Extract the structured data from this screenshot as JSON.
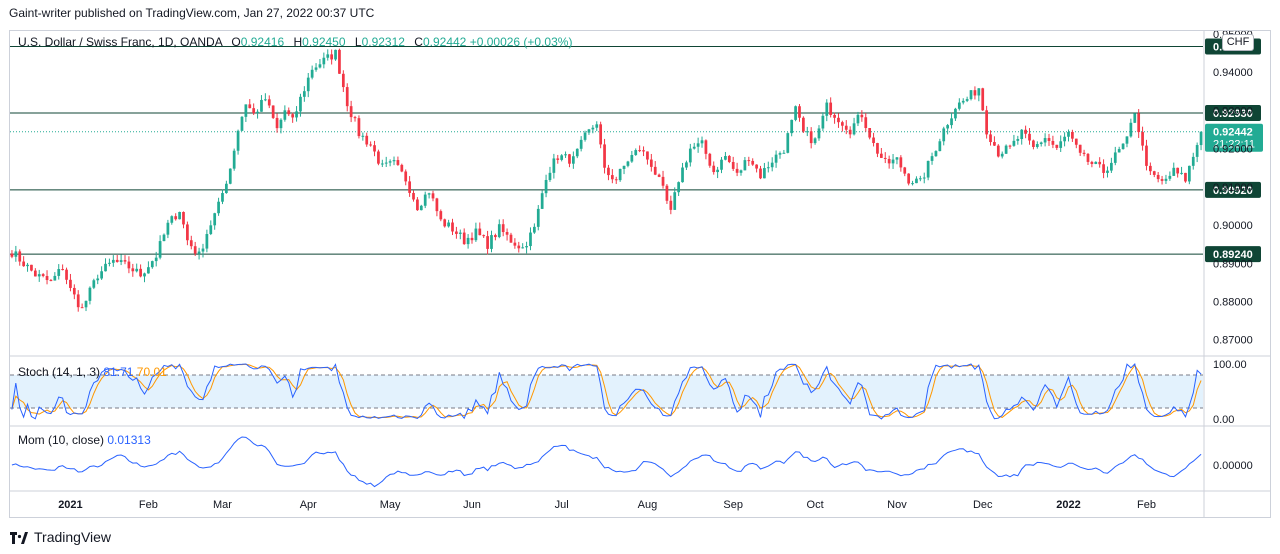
{
  "header": {
    "text": "Gaint-writer published on TradingView.com, Jan 27, 2022 00:37 UTC"
  },
  "legend": {
    "symbol": "U.S. Dollar / Swiss Franc, 1D, OANDA",
    "open_label": "O",
    "open": "0.92416",
    "high_label": "H",
    "high": "0.92450",
    "low_label": "L",
    "low": "0.92312",
    "close_label": "C",
    "close": "0.92442",
    "change": "+0.00026 (+0.03%)"
  },
  "currency_badge": "CHF",
  "stoch": {
    "label": "Stoch (14, 1, 3)",
    "k": "81.71",
    "d": "70.01"
  },
  "mom": {
    "label": "Mom (10, close)",
    "value": "0.01313"
  },
  "footer": {
    "brand": "TradingView"
  },
  "colors": {
    "up": "#22ab94",
    "down": "#f23645",
    "level": "#0f4535",
    "stoch_k": "#2962ff",
    "stoch_d": "#ff9800",
    "mom": "#2962ff",
    "stoch_band": "#e3f2fd"
  },
  "chart_data": {
    "type": "candlestick",
    "price_axis": {
      "range": [
        0.866,
        0.9505
      ],
      "tick_labels": [
        "0.95000",
        "0.94000",
        "0.93000",
        "0.92000",
        "0.91000",
        "0.90000",
        "0.89000",
        "0.88000",
        "0.87000"
      ],
      "tick_values": [
        0.95,
        0.94,
        0.93,
        0.92,
        0.91,
        0.9,
        0.89,
        0.88,
        0.87
      ]
    },
    "levels": [
      {
        "value": 0.9467,
        "label": "0.94670"
      },
      {
        "value": 0.9293,
        "label": "0.92930"
      },
      {
        "value": 0.9092,
        "label": "0.90920"
      },
      {
        "value": 0.8924,
        "label": "0.89240"
      }
    ],
    "last_price": {
      "value": 0.92442,
      "label": "0.92442",
      "countdown": "21:22:11"
    },
    "time_axis": {
      "labels": [
        "2021",
        "Feb",
        "Mar",
        "Apr",
        "May",
        "Jun",
        "Jul",
        "Aug",
        "Sep",
        "Oct",
        "Nov",
        "Dec",
        "2022",
        "Feb"
      ],
      "bold": [
        "2021",
        "2022"
      ],
      "bar_index": [
        15,
        35,
        54,
        76,
        97,
        118,
        141,
        163,
        185,
        206,
        227,
        249,
        271,
        291
      ]
    },
    "close_anchors": [
      [
        0,
        0.893
      ],
      [
        6,
        0.887
      ],
      [
        10,
        0.885
      ],
      [
        13,
        0.889
      ],
      [
        15,
        0.883
      ],
      [
        18,
        0.878
      ],
      [
        22,
        0.887
      ],
      [
        26,
        0.8905
      ],
      [
        30,
        0.889
      ],
      [
        33,
        0.887
      ],
      [
        37,
        0.892
      ],
      [
        40,
        0.9
      ],
      [
        43,
        0.904
      ],
      [
        45,
        0.896
      ],
      [
        48,
        0.892
      ],
      [
        50,
        0.898
      ],
      [
        53,
        0.905
      ],
      [
        56,
        0.915
      ],
      [
        58,
        0.925
      ],
      [
        60,
        0.932
      ],
      [
        62,
        0.929
      ],
      [
        65,
        0.933
      ],
      [
        68,
        0.925
      ],
      [
        70,
        0.93
      ],
      [
        72,
        0.927
      ],
      [
        74,
        0.933
      ],
      [
        77,
        0.941
      ],
      [
        80,
        0.943
      ],
      [
        83,
        0.945
      ],
      [
        86,
        0.932
      ],
      [
        89,
        0.924
      ],
      [
        92,
        0.921
      ],
      [
        95,
        0.915
      ],
      [
        98,
        0.916
      ],
      [
        101,
        0.912
      ],
      [
        104,
        0.905
      ],
      [
        107,
        0.909
      ],
      [
        110,
        0.901
      ],
      [
        113,
        0.899
      ],
      [
        116,
        0.896
      ],
      [
        119,
        0.898
      ],
      [
        122,
        0.895
      ],
      [
        125,
        0.899
      ],
      [
        128,
        0.896
      ],
      [
        131,
        0.894
      ],
      [
        134,
        0.899
      ],
      [
        137,
        0.913
      ],
      [
        140,
        0.918
      ],
      [
        144,
        0.917
      ],
      [
        147,
        0.923
      ],
      [
        150,
        0.927
      ],
      [
        152,
        0.914
      ],
      [
        155,
        0.912
      ],
      [
        158,
        0.917
      ],
      [
        161,
        0.92
      ],
      [
        164,
        0.916
      ],
      [
        167,
        0.909
      ],
      [
        169,
        0.903
      ],
      [
        171,
        0.912
      ],
      [
        174,
        0.92
      ],
      [
        177,
        0.921
      ],
      [
        180,
        0.914
      ],
      [
        183,
        0.918
      ],
      [
        186,
        0.913
      ],
      [
        189,
        0.918
      ],
      [
        192,
        0.913
      ],
      [
        195,
        0.917
      ],
      [
        198,
        0.92
      ],
      [
        201,
        0.93
      ],
      [
        203,
        0.924
      ],
      [
        206,
        0.922
      ],
      [
        209,
        0.931
      ],
      [
        212,
        0.928
      ],
      [
        215,
        0.925
      ],
      [
        218,
        0.929
      ],
      [
        221,
        0.921
      ],
      [
        224,
        0.916
      ],
      [
        227,
        0.917
      ],
      [
        230,
        0.912
      ],
      [
        233,
        0.911
      ],
      [
        236,
        0.918
      ],
      [
        239,
        0.925
      ],
      [
        242,
        0.931
      ],
      [
        245,
        0.933
      ],
      [
        248,
        0.936
      ],
      [
        250,
        0.925
      ],
      [
        253,
        0.919
      ],
      [
        256,
        0.92
      ],
      [
        259,
        0.924
      ],
      [
        262,
        0.92
      ],
      [
        265,
        0.923
      ],
      [
        268,
        0.92
      ],
      [
        271,
        0.924
      ],
      [
        274,
        0.918
      ],
      [
        277,
        0.916
      ],
      [
        280,
        0.914
      ],
      [
        283,
        0.918
      ],
      [
        286,
        0.922
      ],
      [
        288,
        0.93
      ],
      [
        290,
        0.92
      ],
      [
        292,
        0.913
      ],
      [
        295,
        0.911
      ],
      [
        298,
        0.914
      ],
      [
        301,
        0.912
      ],
      [
        303,
        0.918
      ],
      [
        305,
        0.9244
      ]
    ],
    "stoch_axis": {
      "range": [
        0,
        100
      ],
      "tick_labels": [
        "100.00",
        "0.00"
      ],
      "band": [
        20,
        80
      ]
    },
    "mom_axis": {
      "tick_labels": [
        "0.00000"
      ],
      "zero": 0
    }
  }
}
